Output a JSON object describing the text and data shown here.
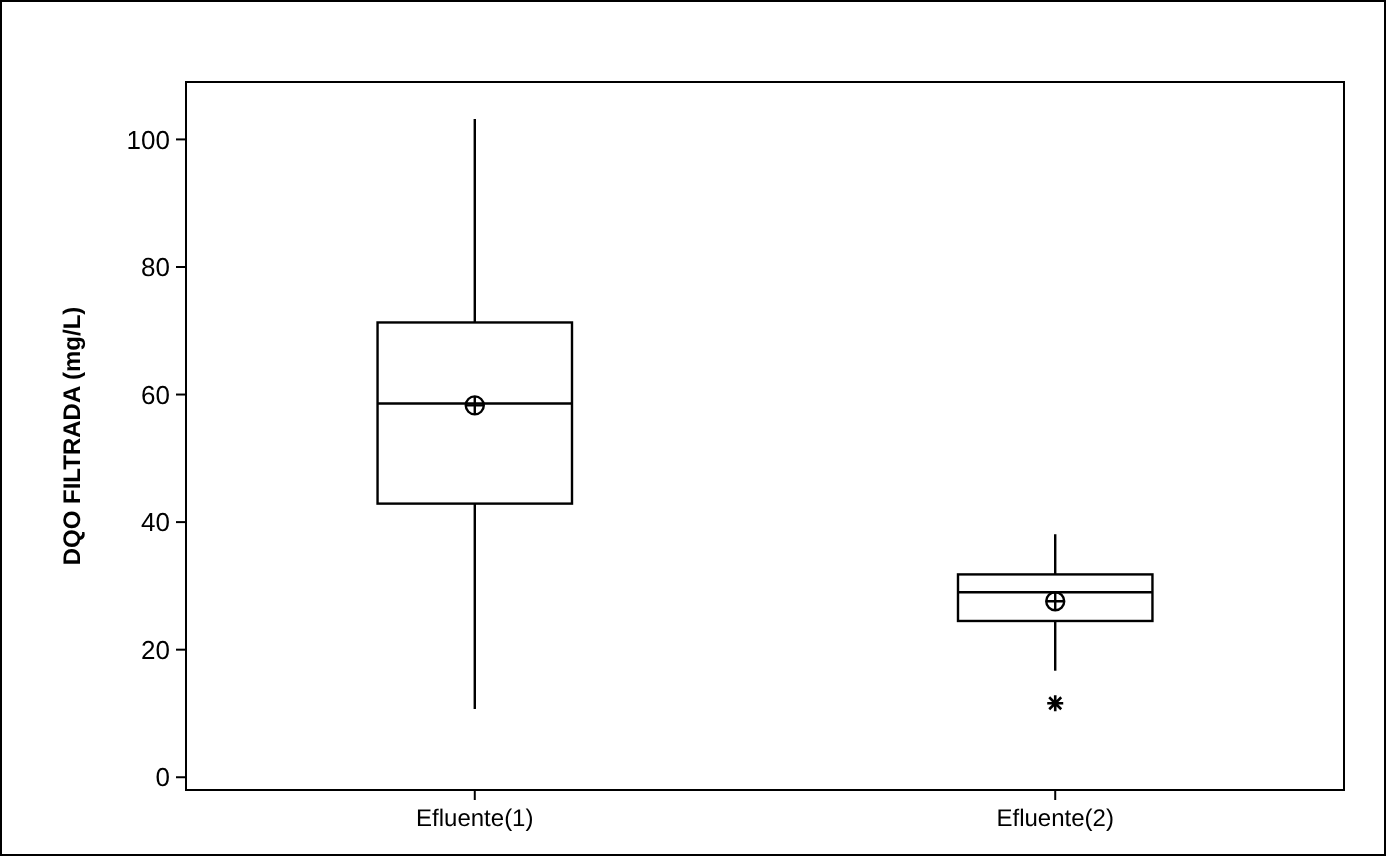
{
  "chart_data": {
    "type": "box",
    "ylabel": "DQO FILTRADA  (mg/L)",
    "categories": [
      "Efluente(1)",
      "Efluente(2)"
    ],
    "boxes": [
      {
        "low": 10.7,
        "q1": 42.9,
        "median": 58.6,
        "q3": 71.3,
        "high": 103.2,
        "mean": 58.3
      },
      {
        "low": 16.7,
        "q1": 24.5,
        "median": 29.0,
        "q3": 31.8,
        "high": 38.1,
        "mean": 27.6,
        "outliers": [
          11.6
        ]
      }
    ],
    "ylim": [
      -2,
      109
    ],
    "yticks": [
      0,
      20,
      40,
      60,
      80,
      100
    ],
    "grid": false,
    "color": "#ffffff"
  }
}
